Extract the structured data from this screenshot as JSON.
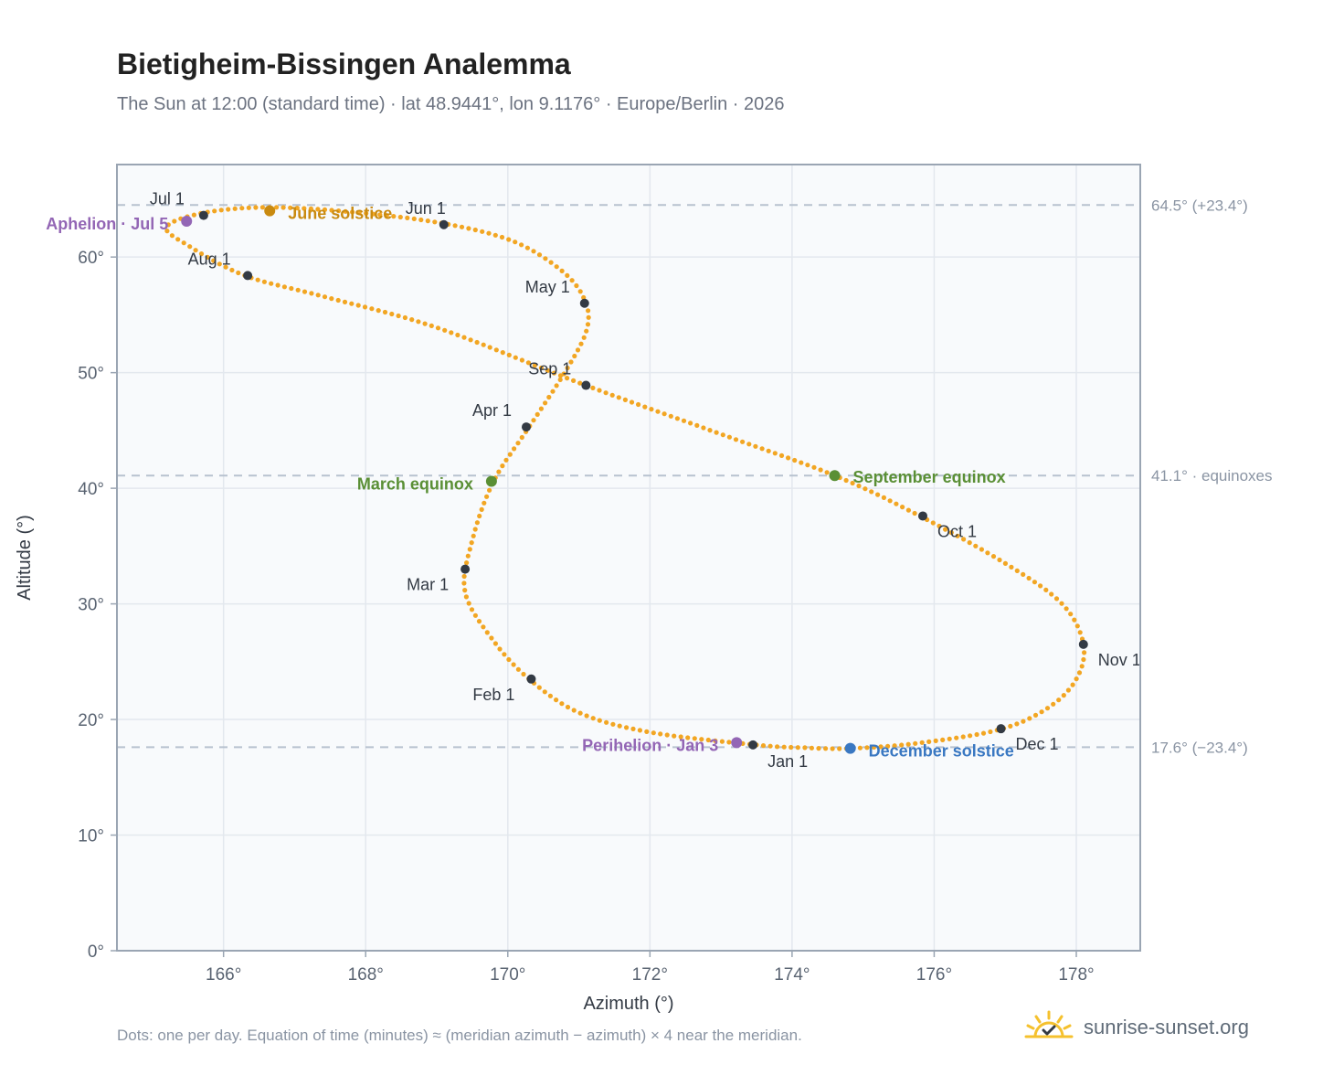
{
  "title": "Bietigheim-Bissingen Analemma",
  "subtitle": "The Sun at 12:00 (standard time) · lat 48.9441°, lon 9.1176° · Europe/Berlin · 2026",
  "footnote": "Dots: one per day. Equation of time (minutes) ≈ (meridian azimuth − azimuth) × 4 near the meridian.",
  "brand": {
    "name": "sunrise-sunset.org",
    "icon": "sun-check-icon"
  },
  "colors": {
    "curve": "#f2a623",
    "month_marker": "#333a44",
    "june_solstice": "#c98a10",
    "december_solstice": "#3a78c2",
    "equinox": "#5a8f35",
    "apsis": "#9366b5",
    "ref_line": "#b8c2cf",
    "plot_bg": "#f8fafc",
    "grid": "#e3e8ee",
    "frame": "#9aa5b3"
  },
  "chart_data": {
    "type": "scatter",
    "xlabel": "Azimuth (°)",
    "ylabel": "Altitude (°)",
    "xlim": [
      164.5,
      178.9
    ],
    "ylim": [
      0,
      68
    ],
    "x_ticks": [
      {
        "value": 166,
        "label": "166°"
      },
      {
        "value": 168,
        "label": "168°"
      },
      {
        "value": 170,
        "label": "170°"
      },
      {
        "value": 172,
        "label": "172°"
      },
      {
        "value": 174,
        "label": "174°"
      },
      {
        "value": 176,
        "label": "176°"
      },
      {
        "value": 178,
        "label": "178°"
      }
    ],
    "y_ticks": [
      {
        "value": 0,
        "label": "0°"
      },
      {
        "value": 10,
        "label": "10°"
      },
      {
        "value": 20,
        "label": "20°"
      },
      {
        "value": 30,
        "label": "30°"
      },
      {
        "value": 40,
        "label": "40°"
      },
      {
        "value": 50,
        "label": "50°"
      },
      {
        "value": 60,
        "label": "60°"
      }
    ],
    "grid": true,
    "reference_lines": [
      {
        "y": 64.5,
        "label": "64.5° (+23.4°)"
      },
      {
        "y": 41.1,
        "label": "41.1° · equinoxes"
      },
      {
        "y": 17.6,
        "label": "17.6° (−23.4°)"
      }
    ],
    "curve_anchors": [
      {
        "x": 173.5,
        "y": 17.8
      },
      {
        "x": 172.0,
        "y": 18.9
      },
      {
        "x": 171.0,
        "y": 20.6
      },
      {
        "x": 170.3,
        "y": 23.5
      },
      {
        "x": 169.8,
        "y": 26.8
      },
      {
        "x": 169.4,
        "y": 31.0
      },
      {
        "x": 169.5,
        "y": 35.5
      },
      {
        "x": 169.8,
        "y": 40.6
      },
      {
        "x": 170.3,
        "y": 45.3
      },
      {
        "x": 170.8,
        "y": 50.0
      },
      {
        "x": 171.1,
        "y": 53.5
      },
      {
        "x": 171.1,
        "y": 56.0
      },
      {
        "x": 170.8,
        "y": 58.6
      },
      {
        "x": 170.1,
        "y": 61.3
      },
      {
        "x": 169.1,
        "y": 62.9
      },
      {
        "x": 167.8,
        "y": 63.9
      },
      {
        "x": 166.6,
        "y": 64.3
      },
      {
        "x": 165.7,
        "y": 63.8
      },
      {
        "x": 165.2,
        "y": 62.6
      },
      {
        "x": 165.5,
        "y": 61.0
      },
      {
        "x": 166.3,
        "y": 58.4
      },
      {
        "x": 167.4,
        "y": 56.6
      },
      {
        "x": 169.0,
        "y": 53.9
      },
      {
        "x": 171.1,
        "y": 48.9
      },
      {
        "x": 172.9,
        "y": 44.9
      },
      {
        "x": 174.6,
        "y": 41.1
      },
      {
        "x": 175.8,
        "y": 37.6
      },
      {
        "x": 177.0,
        "y": 33.5
      },
      {
        "x": 177.8,
        "y": 30.0
      },
      {
        "x": 178.1,
        "y": 26.5
      },
      {
        "x": 178.0,
        "y": 23.5
      },
      {
        "x": 177.6,
        "y": 21.0
      },
      {
        "x": 176.9,
        "y": 19.1
      },
      {
        "x": 175.7,
        "y": 17.9
      },
      {
        "x": 174.8,
        "y": 17.5
      },
      {
        "x": 174.2,
        "y": 17.55
      },
      {
        "x": 173.5,
        "y": 17.8
      }
    ],
    "month_markers": [
      {
        "label": "Jan 1",
        "x": 173.45,
        "y": 17.8
      },
      {
        "label": "Feb 1",
        "x": 170.33,
        "y": 23.5
      },
      {
        "label": "Mar 1",
        "x": 169.4,
        "y": 33.0
      },
      {
        "label": "Apr 1",
        "x": 170.26,
        "y": 45.3
      },
      {
        "label": "May 1",
        "x": 171.08,
        "y": 56.0
      },
      {
        "label": "Jun 1",
        "x": 169.1,
        "y": 62.8
      },
      {
        "label": "Jul 1",
        "x": 165.72,
        "y": 63.6
      },
      {
        "label": "Aug 1",
        "x": 166.34,
        "y": 58.4
      },
      {
        "label": "Sep 1",
        "x": 171.1,
        "y": 48.9
      },
      {
        "label": "Oct 1",
        "x": 175.84,
        "y": 37.6
      },
      {
        "label": "Nov 1",
        "x": 178.1,
        "y": 26.5
      },
      {
        "label": "Dec 1",
        "x": 176.94,
        "y": 19.2
      }
    ],
    "events": [
      {
        "label": "June solstice",
        "x": 166.65,
        "y": 64.0,
        "color_key": "june_solstice"
      },
      {
        "label": "December solstice",
        "x": 174.82,
        "y": 17.5,
        "color_key": "december_solstice"
      },
      {
        "label": "March equinox",
        "x": 169.77,
        "y": 40.6,
        "color_key": "equinox"
      },
      {
        "label": "September equinox",
        "x": 174.6,
        "y": 41.1,
        "color_key": "equinox"
      },
      {
        "label": "Aphelion · Jul 5",
        "x": 165.48,
        "y": 63.1,
        "color_key": "apsis"
      },
      {
        "label": "Perihelion · Jan 3",
        "x": 173.22,
        "y": 18.0,
        "color_key": "apsis"
      }
    ]
  }
}
